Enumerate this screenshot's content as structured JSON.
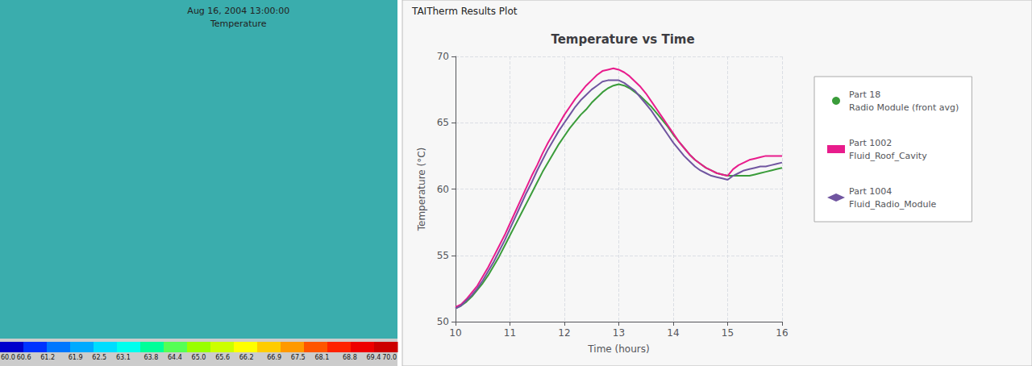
{
  "chart_data": {
    "type": "line",
    "title": "Temperature vs Time",
    "xlabel": "Time (hours)",
    "ylabel": "Temperature (°C)",
    "x": [
      10.0,
      10.1,
      10.2,
      10.3,
      10.4,
      10.5,
      10.6,
      10.7,
      10.8,
      10.9,
      11.0,
      11.1,
      11.2,
      11.3,
      11.4,
      11.5,
      11.6,
      11.7,
      11.8,
      11.9,
      12.0,
      12.1,
      12.2,
      12.3,
      12.4,
      12.5,
      12.6,
      12.7,
      12.8,
      12.9,
      13.0,
      13.1,
      13.2,
      13.3,
      13.4,
      13.5,
      13.6,
      13.7,
      13.8,
      13.9,
      14.0,
      14.1,
      14.2,
      14.3,
      14.4,
      14.5,
      14.6,
      14.7,
      14.8,
      14.9,
      15.0,
      15.1,
      15.2,
      15.3,
      15.4,
      15.5,
      15.6,
      15.7,
      15.8,
      15.9,
      16.0
    ],
    "series": [
      {
        "name": "Part 18\nRadio Module (front avg)",
        "color": "#3a9c3a",
        "marker": "circle",
        "values": [
          51.0,
          51.2,
          51.5,
          51.9,
          52.4,
          52.9,
          53.5,
          54.2,
          54.9,
          55.7,
          56.5,
          57.3,
          58.1,
          58.9,
          59.7,
          60.5,
          61.3,
          62.0,
          62.7,
          63.4,
          64.0,
          64.6,
          65.1,
          65.6,
          66.0,
          66.5,
          66.9,
          67.3,
          67.6,
          67.8,
          67.9,
          67.8,
          67.6,
          67.3,
          67.0,
          66.6,
          66.2,
          65.7,
          65.2,
          64.7,
          64.1,
          63.6,
          63.1,
          62.6,
          62.2,
          61.9,
          61.6,
          61.4,
          61.2,
          61.1,
          61.0,
          61.0,
          61.0,
          61.0,
          61.0,
          61.1,
          61.2,
          61.3,
          61.4,
          61.5,
          61.6
        ]
      },
      {
        "name": "Part 1002\nFluid_Roof_Cavity",
        "color": "#e81c8c",
        "marker": "square",
        "values": [
          51.1,
          51.3,
          51.7,
          52.2,
          52.7,
          53.4,
          54.1,
          54.9,
          55.7,
          56.5,
          57.4,
          58.3,
          59.2,
          60.1,
          61.0,
          61.8,
          62.7,
          63.5,
          64.2,
          64.9,
          65.6,
          66.2,
          66.8,
          67.3,
          67.8,
          68.2,
          68.6,
          68.9,
          69.0,
          69.1,
          69.0,
          68.8,
          68.5,
          68.1,
          67.7,
          67.2,
          66.6,
          66.0,
          65.4,
          64.8,
          64.2,
          63.6,
          63.1,
          62.6,
          62.2,
          61.9,
          61.6,
          61.4,
          61.2,
          61.1,
          61.0,
          61.5,
          61.8,
          62.0,
          62.2,
          62.3,
          62.4,
          62.5,
          62.5,
          62.5,
          62.5
        ]
      },
      {
        "name": "Part 1004\nFluid_Radio_Module",
        "color": "#7055a0",
        "marker": "diamond",
        "values": [
          51.0,
          51.2,
          51.6,
          52.0,
          52.5,
          53.1,
          53.8,
          54.5,
          55.3,
          56.1,
          57.0,
          57.9,
          58.8,
          59.7,
          60.5,
          61.4,
          62.2,
          63.0,
          63.7,
          64.4,
          65.0,
          65.6,
          66.2,
          66.7,
          67.1,
          67.5,
          67.8,
          68.1,
          68.2,
          68.2,
          68.2,
          68.0,
          67.7,
          67.4,
          66.9,
          66.4,
          65.9,
          65.3,
          64.7,
          64.1,
          63.5,
          63.0,
          62.5,
          62.1,
          61.7,
          61.4,
          61.2,
          61.0,
          60.9,
          60.8,
          60.7,
          61.0,
          61.2,
          61.4,
          61.5,
          61.6,
          61.7,
          61.7,
          61.8,
          61.9,
          62.0
        ]
      }
    ],
    "xlim": [
      10,
      16
    ],
    "ylim": [
      50,
      70
    ],
    "xticks": [
      10,
      11,
      12,
      13,
      14,
      15,
      16
    ],
    "yticks": [
      50,
      55,
      60,
      65,
      70
    ],
    "grid": true,
    "legend": "right",
    "annotations": [
      "TAITherm Results Plot",
      "Aug 16, 2004 13:00:00",
      "Temperature"
    ],
    "colorbar": {
      "colors": [
        "#0000cc",
        "#0033ff",
        "#0077ff",
        "#00aaff",
        "#00ddff",
        "#00ffee",
        "#00ff99",
        "#55ff55",
        "#99ff00",
        "#ccff00",
        "#ffff00",
        "#ffcc00",
        "#ff9900",
        "#ff5500",
        "#ff2200",
        "#ee0000",
        "#cc0000"
      ],
      "ticks": [
        {
          "value": 60,
          "label": "60.0"
        },
        60.6,
        61.2,
        61.9,
        62.5,
        63.1,
        63.8,
        64.4,
        {
          "value": 65,
          "label": "65.0"
        },
        65.6,
        66.2,
        66.9,
        67.5,
        68.1,
        68.8,
        69.4,
        {
          "value": 70,
          "label": "70.0"
        }
      ]
    }
  }
}
